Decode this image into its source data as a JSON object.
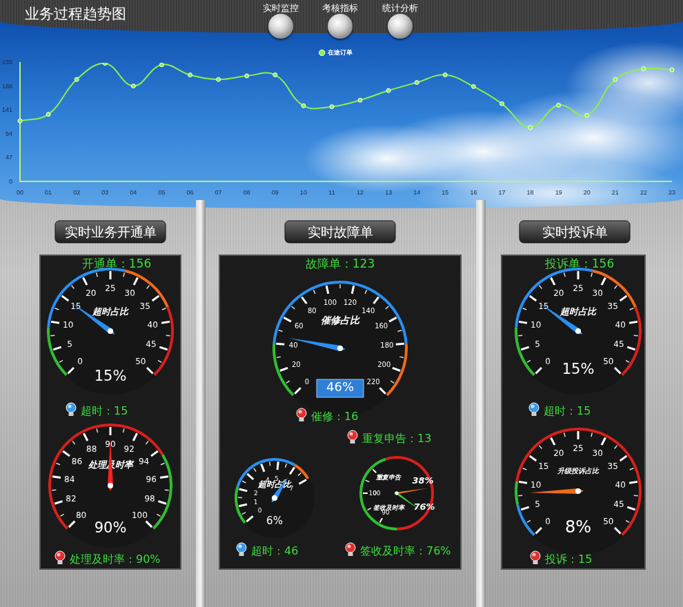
{
  "header": {
    "title": "业务过程趋势图",
    "tabs": [
      "实时监控",
      "考核指标",
      "统计分析"
    ]
  },
  "chart_data": {
    "type": "line",
    "categories": [
      "00",
      "01",
      "02",
      "03",
      "04",
      "05",
      "06",
      "07",
      "08",
      "09",
      "10",
      "11",
      "12",
      "13",
      "14",
      "15",
      "16",
      "17",
      "18",
      "19",
      "20",
      "21",
      "22",
      "23"
    ],
    "series": [
      {
        "name": "在途订单",
        "color": "#8cf04a",
        "marker": "circle",
        "values": [
          120,
          133,
          202,
          234,
          189,
          231,
          211,
          202,
          209,
          211,
          150,
          148,
          161,
          180,
          196,
          211,
          188,
          154,
          107,
          151,
          131,
          202,
          223,
          221
        ]
      }
    ],
    "ylim": [
      0,
      235
    ],
    "yticks": [
      0,
      47,
      94,
      141,
      188,
      235
    ],
    "grid": false,
    "legend": "top"
  },
  "panels": [
    {
      "title": "实时业务开通单",
      "count": "开通单：156",
      "gauges": [
        {
          "label": "超时占比",
          "min": 0,
          "max": 50,
          "ticks": [
            0,
            5,
            10,
            15,
            20,
            25,
            30,
            35,
            40,
            45,
            50
          ],
          "value": 15,
          "value_label": "15%"
        },
        {
          "label": "处理及时率",
          "min": 80,
          "max": 100,
          "ticks": [
            80,
            82,
            84,
            86,
            88,
            90,
            92,
            94,
            96,
            98,
            100
          ],
          "value": 90,
          "value_label": "90%"
        }
      ],
      "indicators": [
        {
          "text": "超时：15",
          "color": "#3a9be8"
        },
        {
          "text": "处理及时率：90%",
          "color": "#e03030"
        }
      ]
    },
    {
      "title": "实时故障单",
      "count": "故障单：123",
      "gauges": [
        {
          "label": "催修占比",
          "min": 0,
          "max": 220,
          "ticks": [
            0,
            20,
            40,
            60,
            80,
            100,
            120,
            140,
            160,
            180,
            200,
            220
          ],
          "value": 46,
          "value_label": "46%"
        },
        {
          "label": "超时占比",
          "min": 0,
          "max": 7,
          "ticks": [
            0,
            1,
            2,
            3,
            4,
            5,
            6,
            7
          ],
          "value": 6,
          "value_label": "6%"
        },
        {
          "label": "重复申告",
          "min": 0,
          "max": 40,
          "ticks": [
            0,
            10
          ],
          "value": 38,
          "value_label": "38%"
        },
        {
          "label": "签收及时率",
          "min": 70,
          "max": 100,
          "ticks": [
            90,
            100
          ],
          "value": 76,
          "value_label": "76%"
        }
      ],
      "indicators": [
        {
          "text": "催修：16",
          "color": "#e03030"
        },
        {
          "text": "重复申告：13",
          "color": "#e03030"
        },
        {
          "text": "超时：46",
          "color": "#3a9be8"
        },
        {
          "text": "签收及时率：76%",
          "color": "#e03030"
        }
      ]
    },
    {
      "title": "实时投诉单",
      "count": "投诉单：156",
      "gauges": [
        {
          "label": "超时占比",
          "min": 0,
          "max": 50,
          "ticks": [
            0,
            5,
            10,
            15,
            20,
            25,
            30,
            35,
            40,
            45,
            50
          ],
          "value": 15,
          "value_label": "15%"
        },
        {
          "label": "升级投诉占比",
          "min": 0,
          "max": 50,
          "ticks": [
            0,
            5,
            10,
            15,
            20,
            25,
            30,
            35,
            40,
            45,
            50
          ],
          "value": 8,
          "value_label": "8%"
        }
      ],
      "indicators": [
        {
          "text": "超时：15",
          "color": "#3a9be8"
        },
        {
          "text": "投诉：15",
          "color": "#e03030"
        }
      ]
    }
  ]
}
